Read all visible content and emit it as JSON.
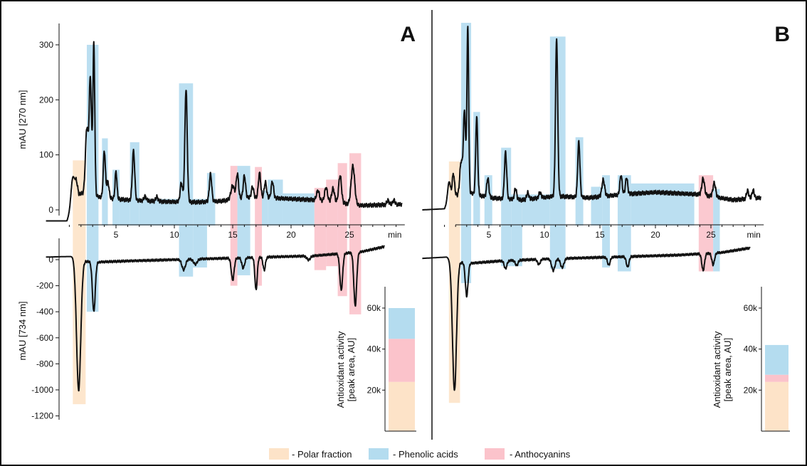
{
  "colors": {
    "polar": "#fde3c8",
    "phenolic": "#b4dcef",
    "anthocyanin": "#fbc3cb",
    "trace": "#111111"
  },
  "legend": [
    {
      "key": "polar",
      "label": "- Polar fraction"
    },
    {
      "key": "phenolic",
      "label": "- Phenolic acids"
    },
    {
      "key": "anthocyanin",
      "label": "- Anthocyanins"
    }
  ],
  "chart_data": [
    {
      "type": "line",
      "panel": "A",
      "x_unit": "min",
      "x_ticks": [
        5,
        10,
        15,
        20,
        25
      ],
      "xlim": [
        -1,
        30
      ],
      "top": {
        "ylabel": "mAU [270 nm]",
        "y_ticks": [
          0,
          100,
          200,
          300
        ],
        "ylim": [
          -30,
          340
        ],
        "baseline": [
          [
            -1,
            -20
          ],
          [
            0.8,
            -20
          ],
          [
            1.2,
            5
          ],
          [
            2,
            30
          ],
          [
            4,
            22
          ],
          [
            6,
            18
          ],
          [
            9,
            15
          ],
          [
            12,
            14
          ],
          [
            14,
            16
          ],
          [
            16,
            22
          ],
          [
            18,
            22
          ],
          [
            20,
            20
          ],
          [
            22,
            18
          ],
          [
            26,
            8
          ],
          [
            29.5,
            10
          ]
        ],
        "peaks": [
          {
            "x": 1.3,
            "h": 50,
            "w": 0.15
          },
          {
            "x": 1.6,
            "h": 30,
            "w": 0.12
          },
          {
            "x": 2.5,
            "h": 120,
            "w": 0.12
          },
          {
            "x": 2.8,
            "h": 210,
            "w": 0.1
          },
          {
            "x": 3.1,
            "h": 275,
            "w": 0.08
          },
          {
            "x": 4.0,
            "h": 85,
            "w": 0.09
          },
          {
            "x": 4.3,
            "h": 30,
            "w": 0.1
          },
          {
            "x": 5.0,
            "h": 50,
            "w": 0.08
          },
          {
            "x": 6.5,
            "h": 90,
            "w": 0.1
          },
          {
            "x": 7.5,
            "h": 8,
            "w": 0.1
          },
          {
            "x": 8.5,
            "h": 8,
            "w": 0.1
          },
          {
            "x": 10.6,
            "h": 35,
            "w": 0.1
          },
          {
            "x": 11.0,
            "h": 205,
            "w": 0.1
          },
          {
            "x": 13.1,
            "h": 50,
            "w": 0.1
          },
          {
            "x": 15.0,
            "h": 25,
            "w": 0.15
          },
          {
            "x": 15.4,
            "h": 45,
            "w": 0.1
          },
          {
            "x": 16.0,
            "h": 40,
            "w": 0.1
          },
          {
            "x": 16.7,
            "h": 20,
            "w": 0.1
          },
          {
            "x": 17.3,
            "h": 45,
            "w": 0.1
          },
          {
            "x": 17.8,
            "h": 28,
            "w": 0.1
          },
          {
            "x": 18.4,
            "h": 30,
            "w": 0.1
          },
          {
            "x": 22.3,
            "h": 18,
            "w": 0.12
          },
          {
            "x": 23.0,
            "h": 25,
            "w": 0.12
          },
          {
            "x": 23.6,
            "h": 25,
            "w": 0.12
          },
          {
            "x": 24.2,
            "h": 50,
            "w": 0.12
          },
          {
            "x": 25.3,
            "h": 70,
            "w": 0.15
          },
          {
            "x": 28.3,
            "h": 8,
            "w": 0.1
          },
          {
            "x": 28.8,
            "h": 8,
            "w": 0.1
          }
        ]
      },
      "bottom": {
        "ylabel": "mAU [734 nm]",
        "y_ticks": [
          0,
          -200,
          -400,
          -600,
          -800,
          -1000,
          -1200
        ],
        "ylim": [
          -1250,
          130
        ],
        "baseline": [
          [
            -1,
            20
          ],
          [
            1.3,
            25
          ],
          [
            1.6,
            0
          ],
          [
            3,
            -20
          ],
          [
            6,
            -10
          ],
          [
            10,
            0
          ],
          [
            14,
            10
          ],
          [
            18,
            20
          ],
          [
            22,
            30
          ],
          [
            26,
            60
          ],
          [
            28,
            100
          ]
        ],
        "peaks": [
          {
            "x": 1.8,
            "h": -1000,
            "w": 0.18
          },
          {
            "x": 3.1,
            "h": -380,
            "w": 0.12
          },
          {
            "x": 10.8,
            "h": -80,
            "w": 0.15
          },
          {
            "x": 11.8,
            "h": -40,
            "w": 0.15
          },
          {
            "x": 15.0,
            "h": -170,
            "w": 0.12
          },
          {
            "x": 15.9,
            "h": -80,
            "w": 0.12
          },
          {
            "x": 17.0,
            "h": -250,
            "w": 0.1
          },
          {
            "x": 17.7,
            "h": -100,
            "w": 0.1
          },
          {
            "x": 21.5,
            "h": -30,
            "w": 0.15
          },
          {
            "x": 24.3,
            "h": -280,
            "w": 0.12
          },
          {
            "x": 25.5,
            "h": -410,
            "w": 0.12
          }
        ]
      },
      "regions": [
        {
          "type": "polar",
          "x0": 1.3,
          "x1": 2.4,
          "y_top": 90,
          "y_bottom": -1110
        },
        {
          "type": "phenolic",
          "x0": 2.5,
          "x1": 3.5,
          "y_top": 300,
          "y_bottom": -400
        },
        {
          "type": "phenolic",
          "x0": 3.8,
          "x1": 4.3,
          "y_top": 130
        },
        {
          "type": "phenolic",
          "x0": 4.7,
          "x1": 5.3,
          "y_top": 73
        },
        {
          "type": "phenolic",
          "x0": 5.3,
          "x1": 6.2,
          "y_top": 20
        },
        {
          "type": "phenolic",
          "x0": 6.2,
          "x1": 7.0,
          "y_top": 123
        },
        {
          "type": "phenolic",
          "x0": 7.0,
          "x1": 10.4,
          "y_top": 20
        },
        {
          "type": "phenolic",
          "x0": 10.4,
          "x1": 11.6,
          "y_top": 230,
          "y_bottom": -130
        },
        {
          "type": "phenolic",
          "x0": 11.6,
          "x1": 12.8,
          "y_top": 20,
          "y_bottom": -60
        },
        {
          "type": "phenolic",
          "x0": 12.8,
          "x1": 13.5,
          "y_top": 67
        },
        {
          "type": "anthocyanin",
          "x0": 14.8,
          "x1": 15.4,
          "y_top": 80,
          "y_bottom": -200
        },
        {
          "type": "phenolic",
          "x0": 15.4,
          "x1": 16.5,
          "y_top": 80,
          "y_bottom": -120
        },
        {
          "type": "anthocyanin",
          "x0": 16.9,
          "x1": 17.5,
          "y_top": 78,
          "y_bottom": -200
        },
        {
          "type": "phenolic",
          "x0": 17.5,
          "x1": 18.0,
          "y_top": 35
        },
        {
          "type": "phenolic",
          "x0": 18.0,
          "x1": 19.3,
          "y_top": 55
        },
        {
          "type": "phenolic",
          "x0": 19.3,
          "x1": 22.0,
          "y_top": 30
        },
        {
          "type": "anthocyanin",
          "x0": 22.0,
          "x1": 23.0,
          "y_top": 40,
          "y_bottom": -80
        },
        {
          "type": "anthocyanin",
          "x0": 23.0,
          "x1": 24.0,
          "y_top": 55,
          "y_bottom": -50
        },
        {
          "type": "anthocyanin",
          "x0": 24.0,
          "x1": 24.8,
          "y_top": 85,
          "y_bottom": -280
        },
        {
          "type": "anthocyanin",
          "x0": 25.0,
          "x1": 26.0,
          "y_top": 103,
          "y_bottom": -420
        }
      ],
      "inset": {
        "type": "bar",
        "ylabel_lines": [
          "Antioxidant activity",
          "[peak area, AU]"
        ],
        "y_ticks": [
          20000,
          40000,
          60000
        ],
        "y_tick_labels": [
          "20k",
          "40k",
          "60k"
        ],
        "ylim": [
          0,
          72000
        ],
        "stack": [
          {
            "type": "polar",
            "value": 24000
          },
          {
            "type": "anthocyanin",
            "value": 21000
          },
          {
            "type": "phenolic",
            "value": 15000
          }
        ]
      }
    },
    {
      "type": "line",
      "panel": "B",
      "x_unit": "min",
      "x_ticks": [
        5,
        10,
        15,
        20,
        25
      ],
      "xlim": [
        -1,
        30
      ],
      "top": {
        "ylabel": "",
        "ylim": [
          -30,
          340
        ],
        "baseline": [
          [
            -1,
            0
          ],
          [
            1,
            2
          ],
          [
            1.5,
            25
          ],
          [
            3.5,
            30
          ],
          [
            5,
            22
          ],
          [
            8,
            18
          ],
          [
            11,
            25
          ],
          [
            14,
            22
          ],
          [
            17,
            28
          ],
          [
            20,
            32
          ],
          [
            24,
            28
          ],
          [
            27,
            18
          ],
          [
            29.5,
            22
          ]
        ],
        "peaks": [
          {
            "x": 1.4,
            "h": 30,
            "w": 0.12
          },
          {
            "x": 1.8,
            "h": 40,
            "w": 0.1
          },
          {
            "x": 2.5,
            "h": 60,
            "w": 0.12
          },
          {
            "x": 2.8,
            "h": 150,
            "w": 0.1
          },
          {
            "x": 3.1,
            "h": 300,
            "w": 0.08
          },
          {
            "x": 3.9,
            "h": 140,
            "w": 0.09
          },
          {
            "x": 4.9,
            "h": 35,
            "w": 0.1
          },
          {
            "x": 6.5,
            "h": 85,
            "w": 0.1
          },
          {
            "x": 7.4,
            "h": 20,
            "w": 0.1
          },
          {
            "x": 8.5,
            "h": 12,
            "w": 0.1
          },
          {
            "x": 9.6,
            "h": 10,
            "w": 0.1
          },
          {
            "x": 11.1,
            "h": 285,
            "w": 0.1
          },
          {
            "x": 13.1,
            "h": 100,
            "w": 0.1
          },
          {
            "x": 15.3,
            "h": 30,
            "w": 0.12
          },
          {
            "x": 16.9,
            "h": 35,
            "w": 0.1
          },
          {
            "x": 17.4,
            "h": 30,
            "w": 0.1
          },
          {
            "x": 24.3,
            "h": 30,
            "w": 0.12
          },
          {
            "x": 25.3,
            "h": 25,
            "w": 0.12
          },
          {
            "x": 28.3,
            "h": 15,
            "w": 0.1
          },
          {
            "x": 28.8,
            "h": 15,
            "w": 0.1
          }
        ]
      },
      "bottom": {
        "ylim": [
          -1250,
          130
        ],
        "baseline": [
          [
            -1,
            10
          ],
          [
            1.2,
            20
          ],
          [
            1.6,
            0
          ],
          [
            3,
            -30
          ],
          [
            6,
            -10
          ],
          [
            10,
            5
          ],
          [
            14,
            15
          ],
          [
            18,
            25
          ],
          [
            22,
            35
          ],
          [
            26,
            55
          ],
          [
            28.5,
            90
          ]
        ],
        "peaks": [
          {
            "x": 1.9,
            "h": -1000,
            "w": 0.18
          },
          {
            "x": 3.0,
            "h": -250,
            "w": 0.12
          },
          {
            "x": 6.5,
            "h": -60,
            "w": 0.12
          },
          {
            "x": 7.5,
            "h": -40,
            "w": 0.12
          },
          {
            "x": 9.5,
            "h": -40,
            "w": 0.12
          },
          {
            "x": 10.8,
            "h": -90,
            "w": 0.15
          },
          {
            "x": 11.6,
            "h": -70,
            "w": 0.15
          },
          {
            "x": 15.8,
            "h": -60,
            "w": 0.12
          },
          {
            "x": 17.5,
            "h": -80,
            "w": 0.12
          },
          {
            "x": 24.3,
            "h": -130,
            "w": 0.12
          },
          {
            "x": 25.2,
            "h": -90,
            "w": 0.12
          }
        ]
      },
      "regions": [
        {
          "type": "polar",
          "x0": 1.4,
          "x1": 2.4,
          "y_top": 88,
          "y_bottom": -1100
        },
        {
          "type": "phenolic",
          "x0": 2.5,
          "x1": 3.4,
          "y_top": 340,
          "y_bottom": -180
        },
        {
          "type": "phenolic",
          "x0": 3.6,
          "x1": 4.2,
          "y_top": 178
        },
        {
          "type": "phenolic",
          "x0": 4.6,
          "x1": 5.3,
          "y_top": 63
        },
        {
          "type": "phenolic",
          "x0": 6.1,
          "x1": 7.0,
          "y_top": 113,
          "y_bottom": -50
        },
        {
          "type": "phenolic",
          "x0": 7.0,
          "x1": 8.0,
          "y_top": 28,
          "y_bottom": -50
        },
        {
          "type": "phenolic",
          "x0": 8.0,
          "x1": 10.5,
          "y_top": 28
        },
        {
          "type": "phenolic",
          "x0": 10.5,
          "x1": 11.9,
          "y_top": 315,
          "y_bottom": -70
        },
        {
          "type": "phenolic",
          "x0": 12.8,
          "x1": 13.5,
          "y_top": 132
        },
        {
          "type": "phenolic",
          "x0": 14.2,
          "x1": 15.2,
          "y_top": 42
        },
        {
          "type": "phenolic",
          "x0": 15.2,
          "x1": 15.9,
          "y_top": 63,
          "y_bottom": -60
        },
        {
          "type": "phenolic",
          "x0": 16.6,
          "x1": 17.8,
          "y_top": 63,
          "y_bottom": -90
        },
        {
          "type": "phenolic",
          "x0": 17.8,
          "x1": 23.5,
          "y_top": 48
        },
        {
          "type": "anthocyanin",
          "x0": 23.9,
          "x1": 25.2,
          "y_top": 63,
          "y_bottom": -90
        },
        {
          "type": "phenolic",
          "x0": 25.2,
          "x1": 25.8,
          "y_top": 38,
          "y_bottom": -90
        }
      ],
      "inset": {
        "type": "bar",
        "ylabel_lines": [
          "Antioxidant activity",
          "[peak area, AU]"
        ],
        "y_ticks": [
          20000,
          40000,
          60000
        ],
        "y_tick_labels": [
          "20k",
          "40k",
          "60k"
        ],
        "ylim": [
          0,
          72000
        ],
        "stack": [
          {
            "type": "polar",
            "value": 24000
          },
          {
            "type": "anthocyanin",
            "value": 3500
          },
          {
            "type": "phenolic",
            "value": 14500
          }
        ]
      }
    }
  ]
}
